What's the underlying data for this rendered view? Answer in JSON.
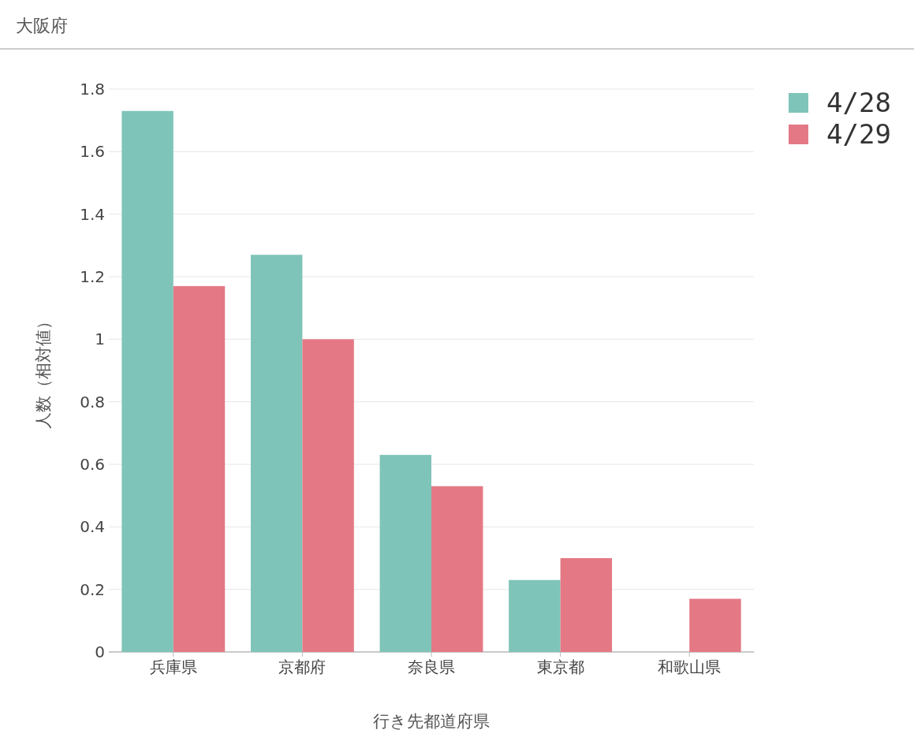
{
  "chart_data": {
    "type": "bar",
    "title": "大阪府",
    "xlabel": "行き先都道府県",
    "ylabel": "人数（相対値）",
    "categories": [
      "兵庫県",
      "京都府",
      "奈良県",
      "東京都",
      "和歌山県"
    ],
    "series": [
      {
        "name": "4/28",
        "color": "#7fc4b8",
        "values": [
          1.73,
          1.27,
          0.63,
          0.23,
          0
        ]
      },
      {
        "name": "4/29",
        "color": "#e47985",
        "values": [
          1.17,
          1.0,
          0.53,
          0.3,
          0.17
        ]
      }
    ],
    "ylim": [
      0,
      1.8
    ],
    "yticks": [
      0,
      0.2,
      0.4,
      0.6,
      0.8,
      1,
      1.2,
      1.4,
      1.6,
      1.8
    ],
    "grid": "y",
    "legend": "top right"
  }
}
